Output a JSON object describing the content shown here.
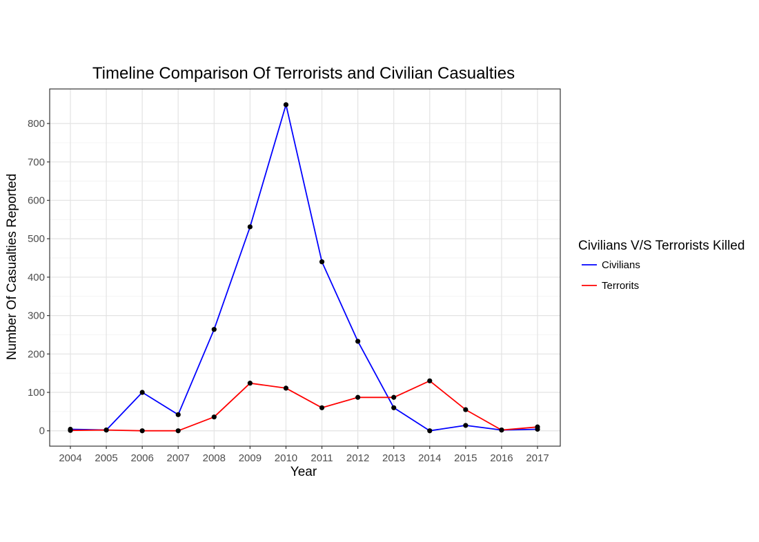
{
  "chart_data": {
    "type": "line",
    "title": "Timeline Comparison Of Terrorists and Civilian Casualties",
    "xlabel": "Year",
    "ylabel": "Number Of Casualties Reported",
    "x": [
      "2004",
      "2005",
      "2006",
      "2007",
      "2008",
      "2009",
      "2010",
      "2011",
      "2012",
      "2013",
      "2014",
      "2015",
      "2016",
      "2017"
    ],
    "yticks": [
      0,
      100,
      200,
      300,
      400,
      500,
      600,
      700,
      800
    ],
    "ylim": [
      -40,
      890
    ],
    "grid": true,
    "legend": {
      "title": "Civilians V/S Terrorists Killed",
      "position": "right"
    },
    "series": [
      {
        "name": "Civilians",
        "color": "#0000ff",
        "values": [
          4,
          2,
          100,
          42,
          264,
          531,
          849,
          440,
          233,
          60,
          0,
          14,
          2,
          4
        ]
      },
      {
        "name": "Terrorits",
        "color": "#ff0000",
        "values": [
          1,
          2,
          0,
          0,
          36,
          124,
          111,
          60,
          87,
          87,
          130,
          55,
          2,
          10
        ]
      }
    ],
    "point_color": "#000000"
  }
}
